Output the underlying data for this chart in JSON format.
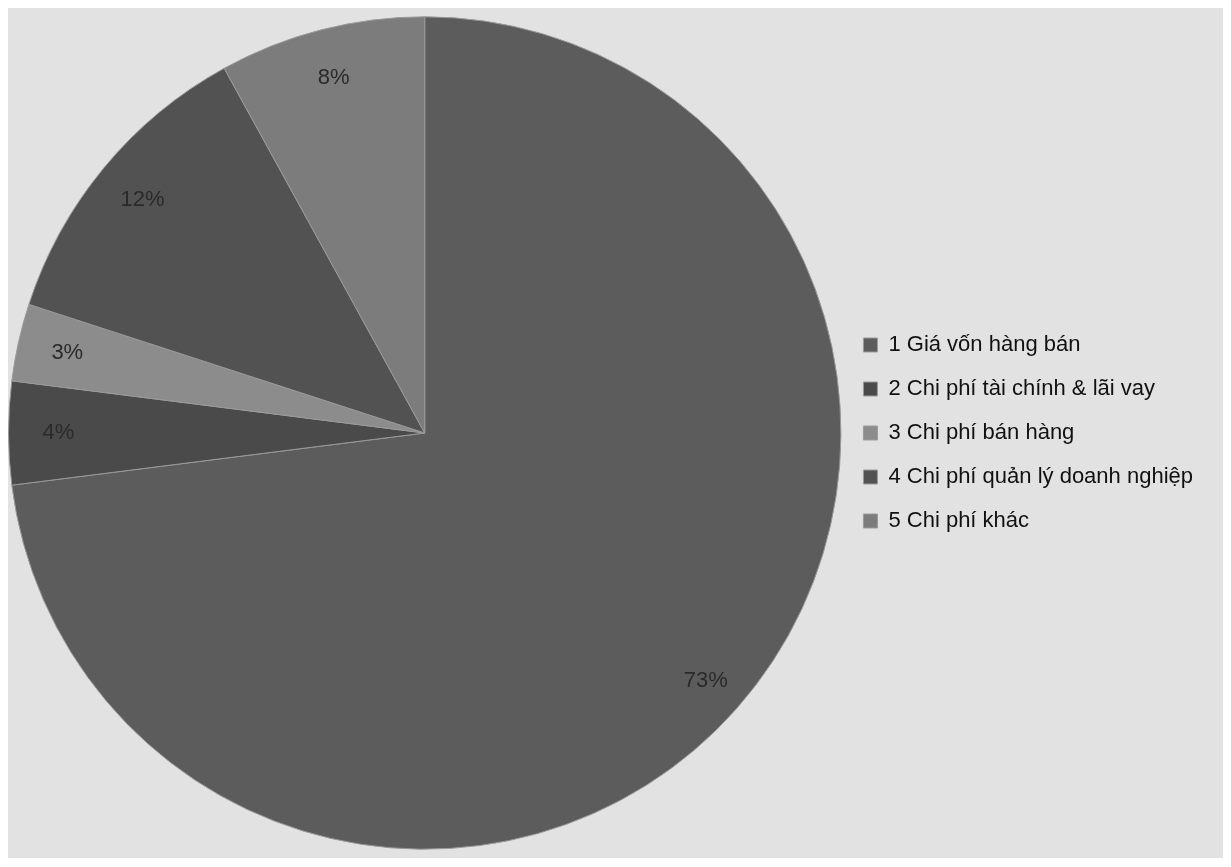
{
  "chart_data": {
    "type": "pie",
    "categories": [
      "1 Giá vốn hàng bán",
      "2 Chi phí tài chính & lãi vay",
      "3 Chi phí bán hàng",
      "4 Chi phí quản lý doanh nghiệp",
      "5 Chi phí khác"
    ],
    "values": [
      73,
      4,
      3,
      12,
      8
    ],
    "colors": [
      "#5c5c5c",
      "#4a4a4a",
      "#8c8c8c",
      "#525252",
      "#7c7c7c"
    ],
    "value_labels": [
      "73%",
      "4%",
      "3%",
      "12%",
      "8%"
    ],
    "legend": "right"
  }
}
